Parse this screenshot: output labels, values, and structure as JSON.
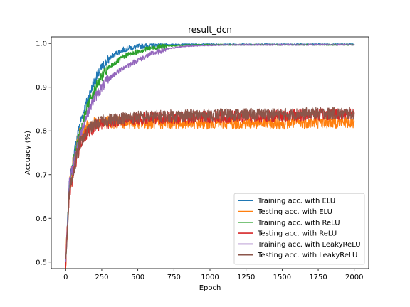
{
  "chart_data": {
    "type": "line",
    "title": "result_dcn",
    "xlabel": "Epoch",
    "ylabel": "Accuacy (%)",
    "xlim": [
      -100,
      2100
    ],
    "ylim": [
      0.485,
      1.015
    ],
    "xticks": [
      0,
      250,
      500,
      750,
      1000,
      1250,
      1500,
      1750,
      2000
    ],
    "yticks": [
      0.5,
      0.6,
      0.7,
      0.8,
      0.9,
      1.0
    ],
    "ytick_labels": [
      "0.5",
      "0.6",
      "0.7",
      "0.8",
      "0.9",
      "1.0"
    ],
    "grid": false,
    "legend_position": "lower-right",
    "series": [
      {
        "name": "Training acc. with ELU",
        "color": "#1f77b4",
        "x": [
          0,
          25,
          50,
          75,
          100,
          150,
          200,
          250,
          300,
          350,
          400,
          500,
          600,
          700,
          800,
          1000,
          1250,
          1500,
          1750,
          2000
        ],
        "y": [
          0.5,
          0.68,
          0.73,
          0.78,
          0.82,
          0.87,
          0.915,
          0.945,
          0.965,
          0.978,
          0.986,
          0.993,
          0.996,
          0.997,
          0.998,
          0.998,
          0.998,
          0.998,
          0.998,
          0.998
        ]
      },
      {
        "name": "Testing acc. with ELU",
        "color": "#ff7f0e",
        "x": [
          0,
          25,
          50,
          75,
          100,
          150,
          200,
          250,
          300,
          400,
          500,
          750,
          1000,
          1250,
          1500,
          1750,
          2000
        ],
        "y": [
          0.5,
          0.67,
          0.72,
          0.765,
          0.79,
          0.81,
          0.818,
          0.82,
          0.82,
          0.82,
          0.818,
          0.818,
          0.818,
          0.818,
          0.818,
          0.82,
          0.82
        ]
      },
      {
        "name": "Training acc. with ReLU",
        "color": "#2ca02c",
        "x": [
          0,
          25,
          50,
          75,
          100,
          150,
          200,
          250,
          300,
          400,
          500,
          600,
          700,
          800,
          1000,
          1250,
          1500,
          1750,
          2000
        ],
        "y": [
          0.5,
          0.68,
          0.72,
          0.765,
          0.8,
          0.855,
          0.895,
          0.925,
          0.945,
          0.97,
          0.982,
          0.99,
          0.994,
          0.996,
          0.997,
          0.997,
          0.997,
          0.997,
          0.997
        ]
      },
      {
        "name": "Testing acc. with ReLU",
        "color": "#d62728",
        "x": [
          0,
          25,
          50,
          75,
          100,
          150,
          200,
          250,
          300,
          400,
          500,
          750,
          1000,
          1250,
          1500,
          1750,
          2000
        ],
        "y": [
          0.5,
          0.66,
          0.7,
          0.74,
          0.77,
          0.795,
          0.81,
          0.817,
          0.82,
          0.825,
          0.828,
          0.83,
          0.832,
          0.833,
          0.835,
          0.838,
          0.84
        ]
      },
      {
        "name": "Training acc. with LeakyReLU",
        "color": "#9467bd",
        "x": [
          0,
          25,
          50,
          75,
          100,
          150,
          200,
          250,
          300,
          400,
          500,
          600,
          700,
          800,
          900,
          1000,
          1250,
          1500,
          1750,
          2000
        ],
        "y": [
          0.5,
          0.68,
          0.72,
          0.76,
          0.79,
          0.84,
          0.875,
          0.9,
          0.92,
          0.945,
          0.962,
          0.977,
          0.987,
          0.993,
          0.995,
          0.996,
          0.997,
          0.997,
          0.997,
          0.997
        ]
      },
      {
        "name": "Testing acc. with LeakyReLU",
        "color": "#8c564b",
        "x": [
          0,
          25,
          50,
          75,
          100,
          150,
          200,
          250,
          300,
          400,
          500,
          750,
          1000,
          1250,
          1500,
          1750,
          2000
        ],
        "y": [
          0.5,
          0.66,
          0.7,
          0.74,
          0.772,
          0.8,
          0.815,
          0.822,
          0.826,
          0.83,
          0.832,
          0.835,
          0.837,
          0.838,
          0.838,
          0.84,
          0.84
        ]
      }
    ]
  }
}
